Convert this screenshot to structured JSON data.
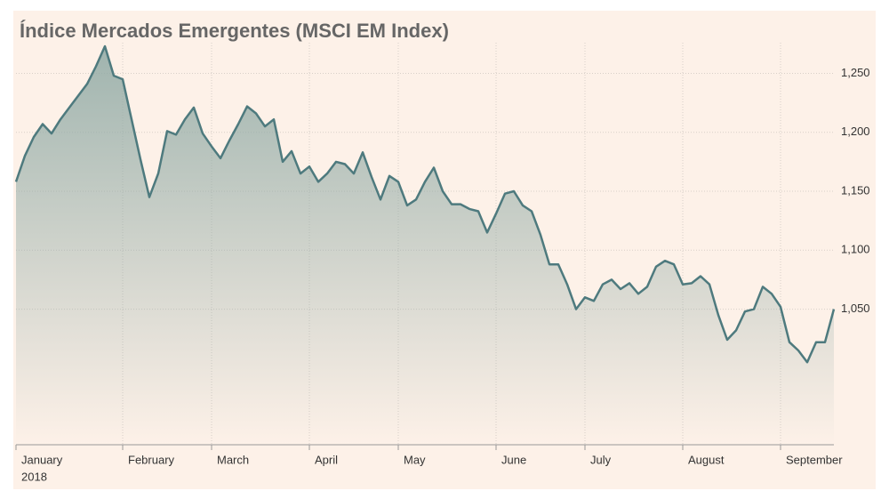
{
  "chart_data": {
    "type": "area",
    "title": "Índice Mercados Emergentes (MSCI EM Index)",
    "year": "2018",
    "color": "#4e7a7e",
    "fill_color": "#8fa9a4",
    "categories": [
      "January",
      null,
      null,
      null,
      null,
      null,
      null,
      null,
      null,
      null,
      null,
      null,
      "February",
      null,
      null,
      null,
      null,
      null,
      null,
      null,
      null,
      null,
      "March",
      null,
      null,
      null,
      null,
      null,
      null,
      null,
      null,
      null,
      null,
      "April",
      null,
      null,
      null,
      null,
      null,
      null,
      null,
      null,
      null,
      "May",
      null,
      null,
      null,
      null,
      null,
      null,
      null,
      null,
      null,
      null,
      "June",
      null,
      null,
      null,
      null,
      null,
      null,
      null,
      null,
      null,
      "July",
      null,
      null,
      null,
      null,
      null,
      null,
      null,
      null,
      null,
      null,
      "August",
      null,
      null,
      null,
      null,
      null,
      null,
      null,
      null,
      null,
      null,
      "September",
      null,
      null,
      null,
      null,
      null,
      null
    ],
    "values": [
      1158,
      1180,
      1196,
      1207,
      1199,
      1211,
      1221,
      1231,
      1241,
      1256,
      1273,
      1248,
      1245,
      1211,
      1177,
      1145,
      1165,
      1201,
      1198,
      1211,
      1221,
      1199,
      1188,
      1178,
      1193,
      1207,
      1222,
      1216,
      1205,
      1211,
      1175,
      1184,
      1165,
      1171,
      1158,
      1165,
      1175,
      1173,
      1165,
      1183,
      1162,
      1143,
      1163,
      1158,
      1138,
      1143,
      1158,
      1170,
      1150,
      1139,
      1139,
      1135,
      1133,
      1115,
      1131,
      1148,
      1150,
      1138,
      1133,
      1113,
      1088,
      1088,
      1071,
      1050,
      1060,
      1057,
      1071,
      1075,
      1067,
      1072,
      1063,
      1069,
      1086,
      1091,
      1088,
      1071,
      1072,
      1078,
      1071,
      1045,
      1024,
      1032,
      1048,
      1050,
      1069,
      1063,
      1052,
      1022,
      1015,
      1005,
      1022,
      1022,
      1050
    ],
    "ylim": [
      935,
      1276
    ],
    "yticks": [
      {
        "value": 1050,
        "label": "1,050"
      },
      {
        "value": 1100,
        "label": "1,100"
      },
      {
        "value": 1150,
        "label": "1,150"
      },
      {
        "value": 1200,
        "label": "1,200"
      },
      {
        "value": 1250,
        "label": "1,250"
      }
    ],
    "grid": true
  }
}
